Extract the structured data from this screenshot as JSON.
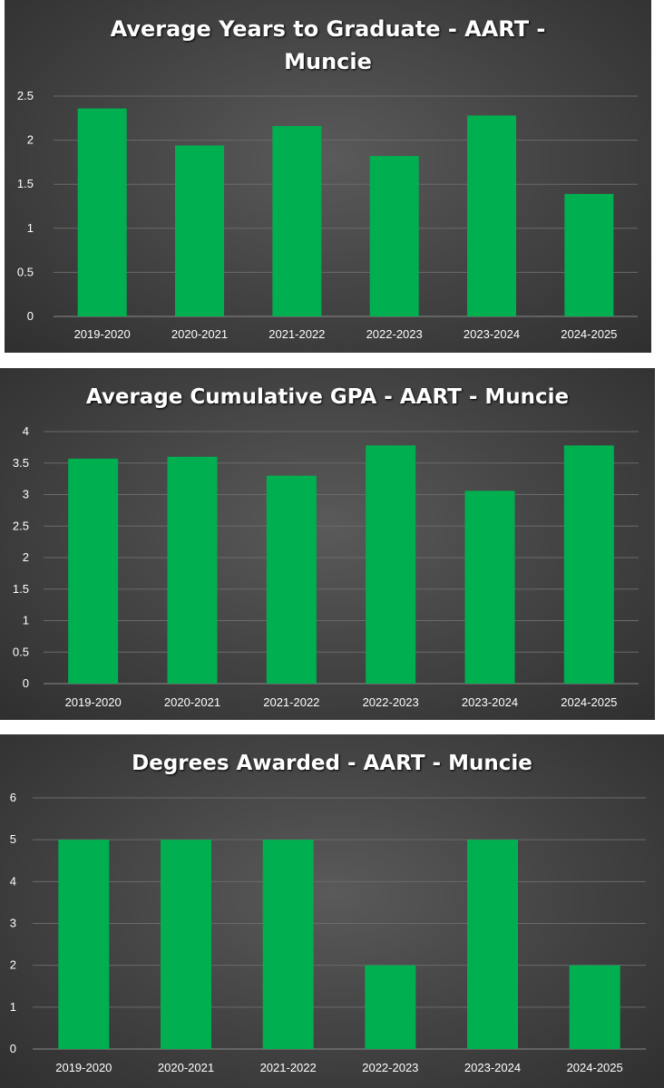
{
  "chart_data": [
    {
      "type": "bar",
      "title": "Average Years to Graduate - AART - Muncie",
      "xlabel": "",
      "ylabel": "",
      "categories": [
        "2019-2020",
        "2020-2021",
        "2021-2022",
        "2022-2023",
        "2023-2024",
        "2024-2025"
      ],
      "values": [
        2.36,
        1.94,
        2.16,
        1.82,
        2.28,
        1.39
      ],
      "ylim": [
        0,
        2.5
      ],
      "yticks": [
        0,
        0.5,
        1,
        1.5,
        2,
        2.5
      ],
      "ytick_labels": [
        "0",
        "0.5",
        "1",
        "1.5",
        "2",
        "2.5"
      ],
      "bar_color": "#00b050",
      "grid": true,
      "legend": false
    },
    {
      "type": "bar",
      "title": "Average Cumulative GPA - AART - Muncie",
      "xlabel": "",
      "ylabel": "",
      "categories": [
        "2019-2020",
        "2020-2021",
        "2021-2022",
        "2022-2023",
        "2023-2024",
        "2024-2025"
      ],
      "values": [
        3.57,
        3.6,
        3.3,
        3.78,
        3.06,
        3.78
      ],
      "ylim": [
        0,
        4
      ],
      "yticks": [
        0,
        0.5,
        1,
        1.5,
        2,
        2.5,
        3,
        3.5,
        4
      ],
      "ytick_labels": [
        "0",
        "0.5",
        "1",
        "1.5",
        "2",
        "2.5",
        "3",
        "3.5",
        "4"
      ],
      "bar_color": "#00b050",
      "grid": true,
      "legend": false
    },
    {
      "type": "bar",
      "title": "Degrees Awarded - AART - Muncie",
      "xlabel": "",
      "ylabel": "",
      "categories": [
        "2019-2020",
        "2020-2021",
        "2021-2022",
        "2022-2023",
        "2023-2024",
        "2024-2025"
      ],
      "values": [
        5,
        5,
        5,
        2,
        5,
        2
      ],
      "ylim": [
        0,
        6
      ],
      "yticks": [
        0,
        1,
        2,
        3,
        4,
        5,
        6
      ],
      "ytick_labels": [
        "0",
        "1",
        "2",
        "3",
        "4",
        "5",
        "6"
      ],
      "bar_color": "#00b050",
      "grid": true,
      "legend": false
    }
  ]
}
